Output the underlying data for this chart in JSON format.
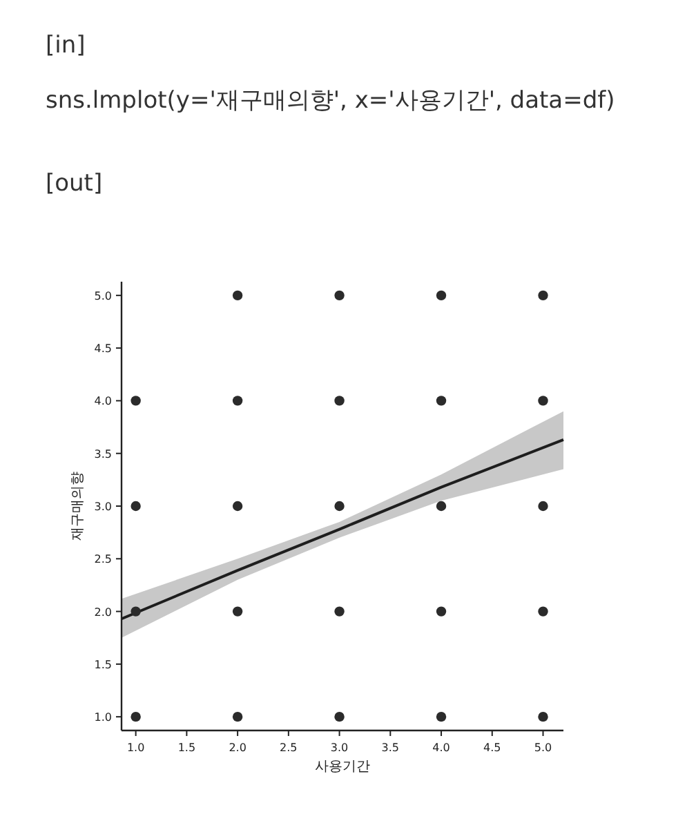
{
  "chart_data": {
    "type": "scatter",
    "annotations": [
      "[in]",
      "sns.lmplot(y='재구매의향', x='사용기간', data=df)",
      "[out]"
    ],
    "xlabel": "사용기간",
    "ylabel": "재구매의향",
    "xlim": [
      0.86,
      5.2
    ],
    "ylim": [
      0.87,
      5.13
    ],
    "xticks": [
      {
        "value": 1,
        "label": "1.0"
      },
      {
        "value": 1.5,
        "label": "1.5"
      },
      {
        "value": 2,
        "label": "2.0"
      },
      {
        "value": 2.5,
        "label": "2.5"
      },
      {
        "value": 3,
        "label": "3.0"
      },
      {
        "value": 3.5,
        "label": "3.5"
      },
      {
        "value": 4,
        "label": "4.0"
      },
      {
        "value": 4.5,
        "label": "4.5"
      },
      {
        "value": 5,
        "label": "5.0"
      }
    ],
    "yticks": [
      {
        "value": 1,
        "label": "1.0"
      },
      {
        "value": 1.5,
        "label": "1.5"
      },
      {
        "value": 2,
        "label": "2.0"
      },
      {
        "value": 2.5,
        "label": "2.5"
      },
      {
        "value": 3,
        "label": "3.0"
      },
      {
        "value": 3.5,
        "label": "3.5"
      },
      {
        "value": 4,
        "label": "4.0"
      },
      {
        "value": 4.5,
        "label": "4.5"
      },
      {
        "value": 5,
        "label": "5.0"
      }
    ],
    "marker": "circle",
    "series": [
      {
        "color": "#2b2b2b",
        "x": [
          1,
          1,
          1,
          1,
          2,
          2,
          2,
          2,
          2,
          3,
          3,
          3,
          3,
          3,
          4,
          4,
          4,
          4,
          4,
          5,
          5,
          5,
          5,
          5
        ],
        "values": [
          1,
          2,
          3,
          4,
          1,
          2,
          3,
          4,
          5,
          1,
          2,
          3,
          4,
          5,
          1,
          2,
          3,
          4,
          5,
          1,
          2,
          3,
          4,
          5
        ]
      },
      {
        "type": "line",
        "marker": "none",
        "color": "#1e1e1e",
        "x": [
          0.86,
          2,
          3,
          4,
          5.2
        ],
        "values": [
          1.93,
          2.39,
          2.78,
          3.18,
          3.63
        ],
        "lower": [
          1.75,
          2.3,
          2.7,
          3.05,
          3.35
        ],
        "upper": [
          2.12,
          2.5,
          2.85,
          3.3,
          3.9
        ]
      }
    ]
  }
}
